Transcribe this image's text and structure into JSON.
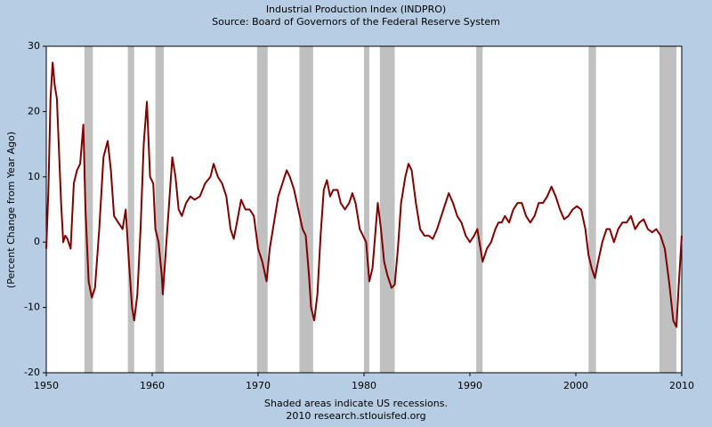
{
  "chart_data": {
    "type": "line",
    "title": "Industrial Production Index (INDPRO)",
    "subtitle": "Source: Board of Governors of the Federal Reserve System",
    "y_label": "(Percent Change from Year Ago)",
    "annotations": [
      "Shaded areas indicate US recessions.",
      "2010 research.stlouisfed.org"
    ],
    "xlim": [
      1950,
      2010
    ],
    "ylim": [
      -20,
      30
    ],
    "xticks": [
      1950,
      1960,
      1970,
      1980,
      1990,
      2000,
      2010
    ],
    "yticks": [
      -20,
      -10,
      0,
      10,
      20,
      30
    ],
    "grid": false,
    "recession_color": "#c0c0c0",
    "recessions": [
      [
        1953.6,
        1954.4
      ],
      [
        1957.7,
        1958.3
      ],
      [
        1960.3,
        1961.1
      ],
      [
        1969.9,
        1970.9
      ],
      [
        1973.9,
        1975.2
      ],
      [
        1980.0,
        1980.5
      ],
      [
        1981.5,
        1982.9
      ],
      [
        1990.6,
        1991.2
      ],
      [
        2001.2,
        2001.9
      ],
      [
        2007.9,
        2009.5
      ]
    ],
    "x": [
      1950.0,
      1950.2,
      1950.4,
      1950.6,
      1950.8,
      1951.0,
      1951.2,
      1951.4,
      1951.6,
      1951.8,
      1952.0,
      1952.3,
      1952.6,
      1952.9,
      1953.2,
      1953.5,
      1953.7,
      1954.0,
      1954.3,
      1954.6,
      1955.0,
      1955.4,
      1955.8,
      1956.1,
      1956.4,
      1956.8,
      1957.2,
      1957.5,
      1957.8,
      1958.1,
      1958.3,
      1958.6,
      1958.9,
      1959.2,
      1959.5,
      1959.8,
      1960.1,
      1960.3,
      1960.6,
      1960.9,
      1961.0,
      1961.3,
      1961.6,
      1961.9,
      1962.2,
      1962.5,
      1962.8,
      1963.2,
      1963.6,
      1964.0,
      1964.5,
      1965.0,
      1965.5,
      1965.8,
      1966.2,
      1966.6,
      1967.0,
      1967.4,
      1967.7,
      1968.0,
      1968.4,
      1968.8,
      1969.2,
      1969.6,
      1970.0,
      1970.4,
      1970.8,
      1971.1,
      1971.5,
      1971.9,
      1972.3,
      1972.7,
      1973.0,
      1973.4,
      1973.8,
      1974.2,
      1974.5,
      1974.8,
      1975.0,
      1975.3,
      1975.6,
      1975.9,
      1976.2,
      1976.5,
      1976.8,
      1977.1,
      1977.5,
      1977.8,
      1978.2,
      1978.6,
      1978.9,
      1979.2,
      1979.6,
      1979.9,
      1980.2,
      1980.5,
      1980.8,
      1981.1,
      1981.3,
      1981.6,
      1981.9,
      1982.2,
      1982.6,
      1982.9,
      1983.2,
      1983.5,
      1983.9,
      1984.2,
      1984.5,
      1984.9,
      1985.3,
      1985.7,
      1986.1,
      1986.5,
      1986.9,
      1987.3,
      1987.7,
      1988.0,
      1988.4,
      1988.8,
      1989.2,
      1989.6,
      1990.0,
      1990.4,
      1990.7,
      1990.9,
      1991.2,
      1991.6,
      1992.0,
      1992.4,
      1992.7,
      1993.0,
      1993.3,
      1993.7,
      1994.1,
      1994.5,
      1994.9,
      1995.3,
      1995.7,
      1996.1,
      1996.5,
      1996.9,
      1997.3,
      1997.7,
      1998.1,
      1998.5,
      1998.9,
      1999.3,
      1999.7,
      2000.1,
      2000.5,
      2000.9,
      2001.2,
      2001.5,
      2001.8,
      2002.1,
      2002.5,
      2002.9,
      2003.2,
      2003.6,
      2004.0,
      2004.4,
      2004.8,
      2005.2,
      2005.6,
      2006.0,
      2006.4,
      2006.8,
      2007.2,
      2007.6,
      2008.0,
      2008.4,
      2008.8,
      2009.2,
      2009.5,
      2009.7,
      2010.0
    ],
    "series": [
      {
        "name": "INDPRO",
        "color": "#800000",
        "values": [
          -1,
          8,
          22,
          27.5,
          24,
          22,
          14,
          6,
          0,
          1,
          0.5,
          -1,
          9,
          11,
          12,
          18,
          5,
          -6,
          -8.5,
          -7,
          2,
          13,
          15.5,
          11,
          4,
          3,
          2,
          5,
          -3,
          -10,
          -12,
          -8,
          2,
          15,
          21.5,
          10,
          9,
          2,
          0,
          -5,
          -8,
          -1,
          6,
          13,
          10,
          5,
          4,
          6,
          7,
          6.5,
          7,
          9,
          10,
          12,
          10,
          9,
          7,
          2,
          0.5,
          3,
          6.5,
          5,
          5,
          4,
          -1,
          -3,
          -6,
          -1,
          3,
          7,
          9,
          11,
          10,
          8,
          5,
          2,
          1,
          -5,
          -10,
          -12,
          -8,
          1,
          8,
          9.5,
          7,
          8,
          8,
          6,
          5,
          6,
          7.5,
          6,
          2,
          1,
          0,
          -6,
          -4,
          2,
          6,
          2,
          -3,
          -5,
          -7,
          -6.5,
          -1,
          6,
          10,
          12,
          11,
          6,
          2,
          1,
          1,
          0.5,
          2,
          4,
          6,
          7.5,
          6,
          4,
          3,
          1,
          0,
          1,
          2,
          0,
          -3,
          -1,
          0,
          2,
          3,
          3,
          4,
          3,
          5,
          6,
          6,
          4,
          3,
          4,
          6,
          6,
          7,
          8.5,
          7,
          5,
          3.5,
          4,
          5,
          5.5,
          5,
          2,
          -2,
          -4,
          -5.5,
          -3,
          0,
          2,
          2,
          0,
          2,
          3,
          3,
          4,
          2,
          3,
          3.5,
          2,
          1.5,
          2,
          1,
          -1,
          -6,
          -12,
          -13,
          -7,
          1
        ]
      }
    ]
  }
}
